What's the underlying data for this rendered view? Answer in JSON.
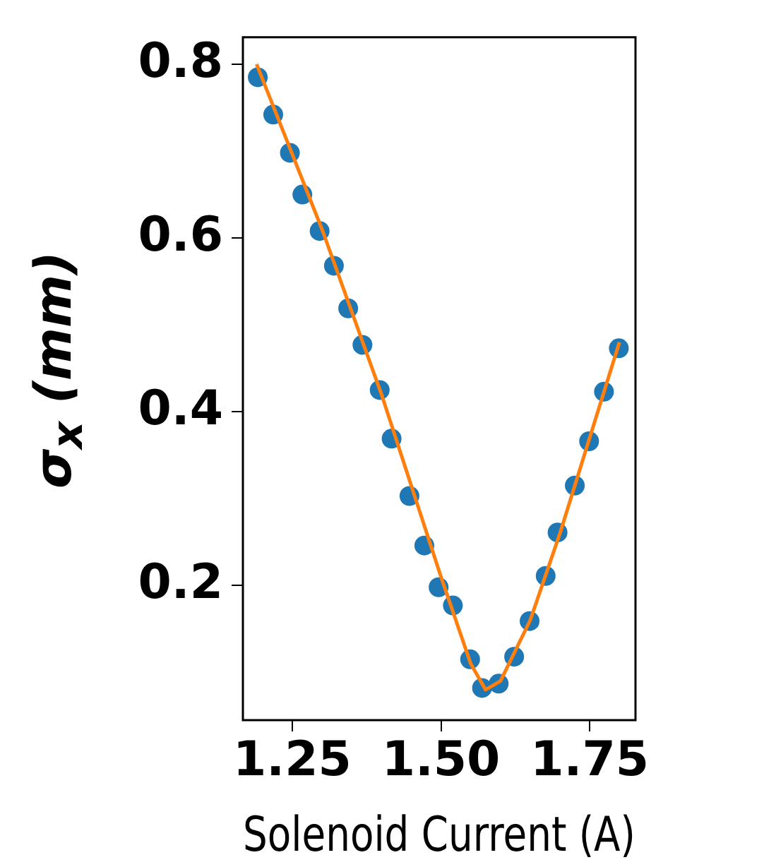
{
  "chart_data": {
    "type": "scatter",
    "xlabel": "Solenoid Current (A)",
    "ylabel": "σ$_{x}$ (mm)",
    "xlim": [
      1.167,
      1.827
    ],
    "xticks": [
      1.25,
      {
        "value": 1.5,
        "label": "1.50"
      },
      1.75
    ],
    "ylim": [
      0.045,
      0.831
    ],
    "yticks": [
      0.2,
      0.4,
      0.6,
      0.8
    ],
    "grid": false,
    "legend": false,
    "marker": "circle",
    "series": [
      {
        "type": "line",
        "color": "#ff7f0e",
        "marker": "none",
        "x": [
          1.19,
          1.3,
          1.4,
          1.5,
          1.55,
          1.575,
          1.6,
          1.65,
          1.7,
          1.75,
          1.8
        ],
        "values": [
          0.8,
          0.61,
          0.42,
          0.21,
          0.11,
          0.08,
          0.09,
          0.16,
          0.26,
          0.37,
          0.48
        ]
      },
      {
        "type": "scatter",
        "color": "#1f77b4",
        "x": [
          1.192,
          1.218,
          1.246,
          1.267,
          1.296,
          1.32,
          1.344,
          1.368,
          1.397,
          1.417,
          1.447,
          1.472,
          1.496,
          1.52,
          1.549,
          1.569,
          1.597,
          1.623,
          1.649,
          1.676,
          1.696,
          1.725,
          1.749,
          1.774,
          1.799
        ],
        "values": [
          0.785,
          0.742,
          0.698,
          0.65,
          0.608,
          0.568,
          0.519,
          0.477,
          0.425,
          0.369,
          0.303,
          0.246,
          0.198,
          0.177,
          0.115,
          0.082,
          0.087,
          0.118,
          0.159,
          0.211,
          0.261,
          0.315,
          0.366,
          0.423,
          0.473
        ]
      }
    ]
  }
}
